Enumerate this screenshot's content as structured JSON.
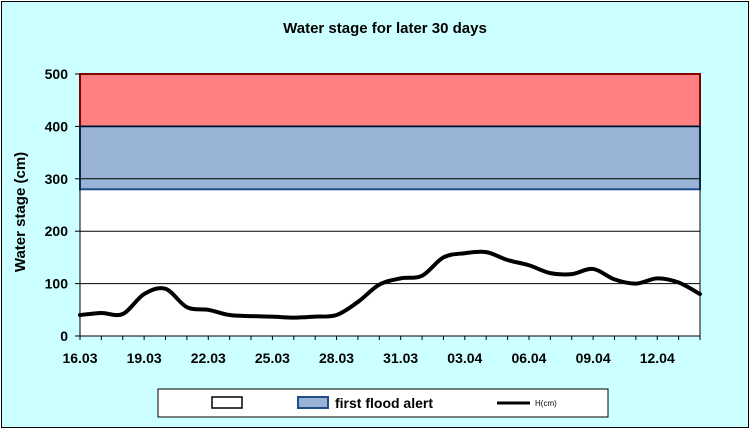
{
  "chart_data": {
    "type": "line",
    "title": "Water stage for later 30 days",
    "ylabel": "Water stage (cm)",
    "xlabel": "",
    "ylim": [
      0,
      500
    ],
    "yticks": [
      0,
      100,
      200,
      300,
      400,
      500
    ],
    "x_tick_labels": [
      "16.03",
      "19.03",
      "22.03",
      "25.03",
      "28.03",
      "31.03",
      "03.04",
      "06.04",
      "09.04",
      "12.04"
    ],
    "grid": true,
    "bands": [
      {
        "name": "",
        "from": 400,
        "to": 500,
        "color": "#ff8080",
        "edge": "#ff0000"
      },
      {
        "name": "first flood alert",
        "from": 280,
        "to": 400,
        "color": "#99b3d6",
        "edge": "#1f4e8c"
      }
    ],
    "series": [
      {
        "name": "H(cm)",
        "color": "#000000",
        "x": [
          "16.03",
          "17.03",
          "18.03",
          "19.03",
          "20.03",
          "21.03",
          "22.03",
          "23.03",
          "24.03",
          "25.03",
          "26.03",
          "27.03",
          "28.03",
          "29.03",
          "30.03",
          "31.03",
          "01.04",
          "02.04",
          "03.04",
          "04.04",
          "05.04",
          "06.04",
          "07.04",
          "08.04",
          "09.04",
          "10.04",
          "11.04",
          "12.04",
          "13.04",
          "14.04"
        ],
        "values": [
          40,
          44,
          42,
          80,
          90,
          55,
          50,
          40,
          38,
          37,
          35,
          37,
          40,
          65,
          98,
          110,
          115,
          150,
          158,
          160,
          145,
          135,
          120,
          118,
          128,
          108,
          100,
          110,
          102,
          80
        ]
      }
    ],
    "legend": {
      "placement": "bottom",
      "entries": [
        "",
        "first flood alert",
        "H(cm)"
      ]
    }
  }
}
